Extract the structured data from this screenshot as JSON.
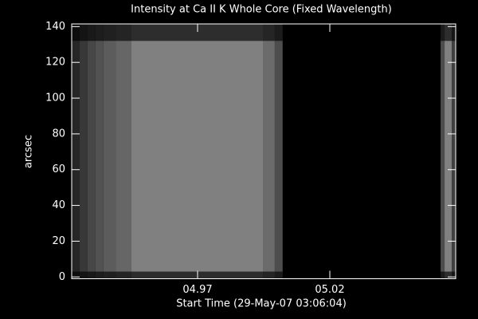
{
  "chart_data": {
    "type": "image",
    "title": "Intensity at Ca II K Whole Core (Fixed Wavelength)",
    "xlabel": "Start Time (29-May-07 03:06:04)",
    "ylabel": "arcsec",
    "x_edges": [
      4.9224,
      4.9254,
      4.9284,
      4.9314,
      4.9344,
      4.939,
      4.945,
      4.9947,
      4.9992,
      5.0022,
      5.0619,
      5.0634,
      5.0661,
      5.0676
    ],
    "levels": [
      15,
      22,
      28,
      32,
      36,
      40,
      50,
      42,
      30,
      0,
      30,
      50,
      25
    ],
    "yrange": [
      3,
      132
    ],
    "xlim": [
      4.9224,
      5.0676
    ],
    "ylim": [
      -1,
      141.5
    ],
    "xticks": [
      {
        "value": 4.97,
        "label": "04.97"
      },
      {
        "value": 5.02,
        "label": "05.02"
      }
    ],
    "yticks": [
      0,
      20,
      40,
      60,
      80,
      100,
      120,
      140
    ]
  }
}
